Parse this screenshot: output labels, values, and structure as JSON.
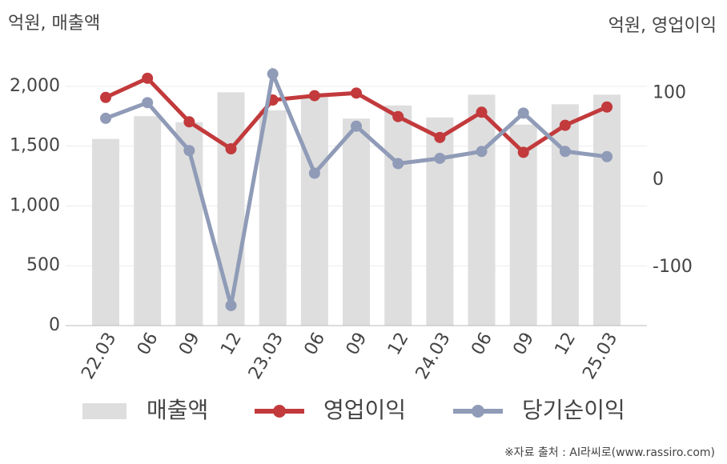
{
  "chart_data": {
    "type": "combo",
    "y_label": "억원, 매출액",
    "y2_label": "억원, 영업이익",
    "source": "※자료 출처 : AI라씨로(www.rassiro.com)",
    "categories": [
      "22.03",
      "06",
      "09",
      "12",
      "23.03",
      "06",
      "09",
      "12",
      "24.03",
      "06",
      "09",
      "12",
      "25.03"
    ],
    "series": [
      {
        "name": "매출액",
        "type": "bar",
        "color": "#dedede",
        "values": [
          1560,
          1750,
          1700,
          1950,
          1800,
          1920,
          1730,
          1840,
          1740,
          1930,
          1680,
          1850,
          1930
        ]
      },
      {
        "name": "영업이익",
        "type": "line",
        "axis": "y2",
        "color": "#c23a3c",
        "values": [
          95,
          117,
          67,
          36,
          92,
          97,
          100,
          73,
          49,
          78,
          32,
          63,
          84
        ]
      },
      {
        "name": "당기순이익",
        "type": "line",
        "axis": "y2",
        "color": "#8f9bb7",
        "values": [
          71,
          89,
          34,
          -144,
          122,
          8,
          62,
          19,
          25,
          33,
          77,
          33,
          27
        ]
      }
    ],
    "ylim": [
      0,
      2300
    ],
    "yticks": [
      0,
      500,
      {
        "value": 1000,
        "label": "1,000"
      },
      {
        "value": 1500,
        "label": "1,500"
      },
      {
        "value": 2000,
        "label": "2,000"
      }
    ],
    "y2lim": [
      -167,
      149
    ],
    "y2ticks": [
      -100,
      0,
      100
    ],
    "grid": true
  }
}
